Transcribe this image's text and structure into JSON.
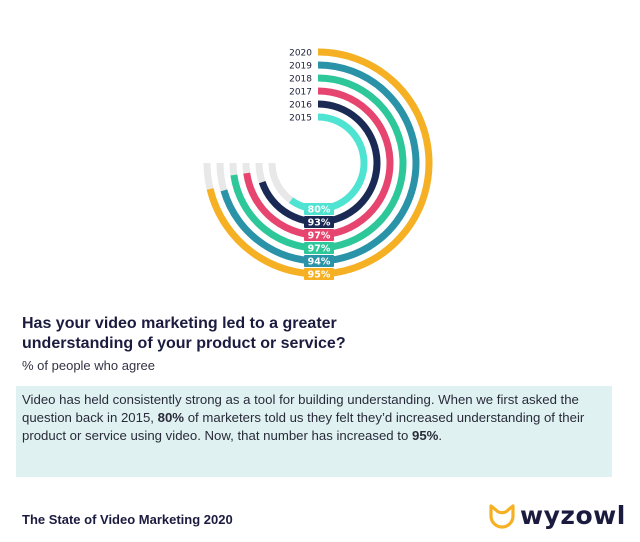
{
  "chart_data": {
    "type": "radial-bar",
    "series": [
      {
        "label": "2020",
        "value": 95,
        "color": "#f5b023"
      },
      {
        "label": "2019",
        "value": 94,
        "color": "#2a93a8"
      },
      {
        "label": "2018",
        "value": 97,
        "color": "#2ec79a"
      },
      {
        "label": "2017",
        "value": 97,
        "color": "#e6456f"
      },
      {
        "label": "2016",
        "value": 93,
        "color": "#1b2a55"
      },
      {
        "label": "2015",
        "value": 80,
        "color": "#4fe3d2"
      }
    ],
    "track_color": "#e8e8e8",
    "range": [
      0,
      100
    ],
    "unit": "%"
  },
  "question": "Has your video marketing led to a greater understanding of your product or service?",
  "subtitle": "% of people who agree",
  "callout": {
    "before": "Video has held consistently strong as a tool for building understanding. When we first asked the question back in 2015, ",
    "bold1": "80%",
    "middle": " of marketers told us they felt they’d increased understanding of their product or service using video. Now, that number has increased to ",
    "bold2": "95%",
    "after": "."
  },
  "footer": "The State of Video Marketing 2020",
  "brand": {
    "name": "wyzowl",
    "color": "#f5b023"
  }
}
